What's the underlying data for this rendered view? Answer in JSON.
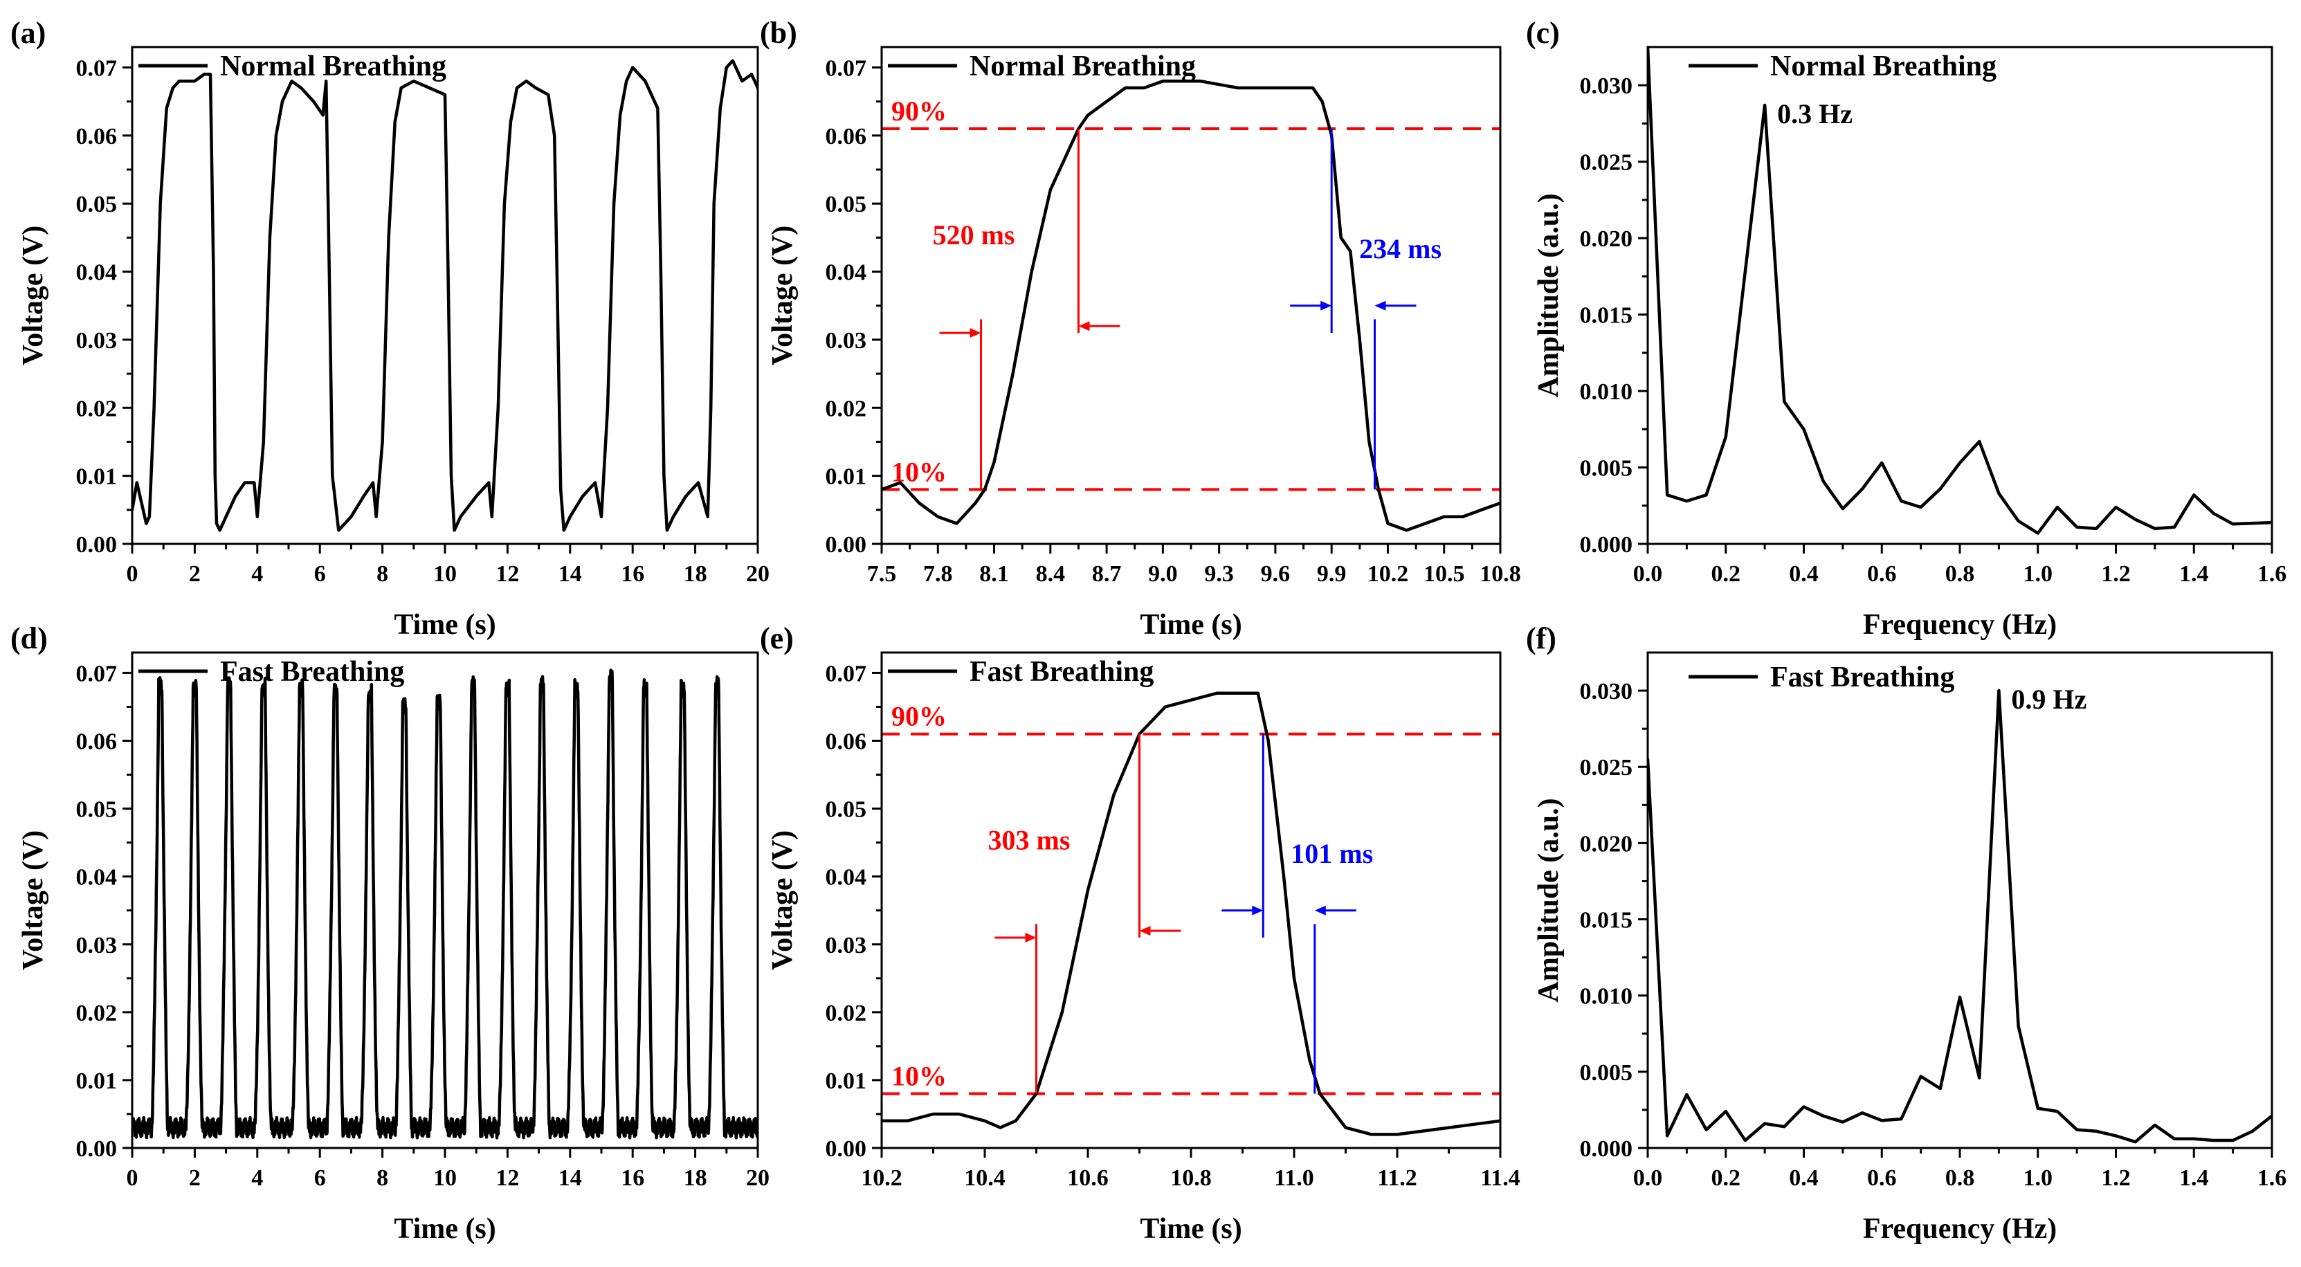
{
  "chart_data": [
    {
      "panel": "(a)",
      "type": "line",
      "legend": "Normal Breathing",
      "xlabel": "Time (s)",
      "ylabel": "Voltage (V)",
      "xlim": [
        0,
        20
      ],
      "ylim": [
        0,
        0.073
      ],
      "xticks": [
        0,
        2,
        4,
        6,
        8,
        10,
        12,
        14,
        16,
        18,
        20
      ],
      "yticks": [
        0.0,
        0.01,
        0.02,
        0.03,
        0.04,
        0.05,
        0.06,
        0.07
      ],
      "xtick_labels": [
        "0",
        "2",
        "4",
        "6",
        "8",
        "10",
        "12",
        "14",
        "16",
        "18",
        "20"
      ],
      "ytick_labels": [
        "0.00",
        "0.01",
        "0.02",
        "0.03",
        "0.04",
        "0.05",
        "0.06",
        "0.07"
      ],
      "series": [
        {
          "name": "Normal Breathing",
          "x": [
            0,
            0.15,
            0.3,
            0.45,
            0.55,
            0.7,
            0.9,
            1.1,
            1.3,
            1.5,
            1.7,
            2.0,
            2.3,
            2.5,
            2.6,
            2.65,
            2.7,
            2.8,
            3.0,
            3.3,
            3.6,
            3.9,
            4.0,
            4.2,
            4.4,
            4.6,
            4.8,
            5.1,
            5.4,
            5.8,
            6.1,
            6.2,
            6.3,
            6.4,
            6.6,
            7.0,
            7.4,
            7.7,
            7.8,
            8.0,
            8.2,
            8.4,
            8.6,
            9.0,
            9.5,
            10.0,
            10.1,
            10.2,
            10.3,
            10.5,
            11.0,
            11.4,
            11.5,
            11.7,
            11.9,
            12.1,
            12.3,
            12.6,
            12.9,
            13.3,
            13.5,
            13.6,
            13.7,
            13.8,
            14.0,
            14.4,
            14.8,
            15.0,
            15.2,
            15.4,
            15.6,
            15.8,
            16.0,
            16.4,
            16.8,
            16.9,
            17.0,
            17.1,
            17.3,
            17.7,
            18.1,
            18.4,
            18.5,
            18.6,
            18.8,
            19.0,
            19.2,
            19.5,
            19.8,
            20.0
          ],
          "y": [
            0.005,
            0.009,
            0.006,
            0.003,
            0.004,
            0.02,
            0.05,
            0.064,
            0.067,
            0.068,
            0.068,
            0.068,
            0.069,
            0.069,
            0.04,
            0.01,
            0.003,
            0.002,
            0.004,
            0.007,
            0.009,
            0.009,
            0.004,
            0.015,
            0.045,
            0.06,
            0.065,
            0.068,
            0.067,
            0.065,
            0.063,
            0.068,
            0.04,
            0.01,
            0.002,
            0.004,
            0.007,
            0.009,
            0.004,
            0.015,
            0.045,
            0.062,
            0.067,
            0.068,
            0.067,
            0.066,
            0.04,
            0.01,
            0.002,
            0.004,
            0.007,
            0.009,
            0.004,
            0.02,
            0.05,
            0.062,
            0.067,
            0.068,
            0.067,
            0.066,
            0.06,
            0.035,
            0.008,
            0.002,
            0.004,
            0.007,
            0.009,
            0.004,
            0.02,
            0.05,
            0.063,
            0.068,
            0.07,
            0.068,
            0.064,
            0.04,
            0.01,
            0.002,
            0.004,
            0.007,
            0.009,
            0.004,
            0.02,
            0.05,
            0.064,
            0.07,
            0.071,
            0.068,
            0.069,
            0.067
          ]
        }
      ]
    },
    {
      "panel": "(b)",
      "type": "line",
      "legend": "Normal Breathing",
      "xlabel": "Time (s)",
      "ylabel": "Voltage (V)",
      "xlim": [
        7.5,
        10.8
      ],
      "ylim": [
        0,
        0.073
      ],
      "xticks": [
        7.5,
        7.8,
        8.1,
        8.4,
        8.7,
        9.0,
        9.3,
        9.6,
        9.9,
        10.2,
        10.5,
        10.8
      ],
      "yticks": [
        0.0,
        0.01,
        0.02,
        0.03,
        0.04,
        0.05,
        0.06,
        0.07
      ],
      "xtick_labels": [
        "7.5",
        "7.8",
        "8.1",
        "8.4",
        "8.7",
        "9.0",
        "9.3",
        "9.6",
        "9.9",
        "10.2",
        "10.5",
        "10.8"
      ],
      "ytick_labels": [
        "0.00",
        "0.01",
        "0.02",
        "0.03",
        "0.04",
        "0.05",
        "0.06",
        "0.07"
      ],
      "series": [
        {
          "name": "Normal Breathing",
          "x": [
            7.5,
            7.6,
            7.7,
            7.8,
            7.9,
            8.0,
            8.05,
            8.1,
            8.2,
            8.3,
            8.4,
            8.5,
            8.55,
            8.6,
            8.7,
            8.8,
            8.9,
            9.0,
            9.2,
            9.4,
            9.6,
            9.8,
            9.85,
            9.9,
            9.95,
            10.0,
            10.05,
            10.1,
            10.15,
            10.2,
            10.3,
            10.4,
            10.5,
            10.6,
            10.7,
            10.8
          ],
          "y": [
            0.008,
            0.009,
            0.006,
            0.004,
            0.003,
            0.006,
            0.008,
            0.012,
            0.025,
            0.04,
            0.052,
            0.058,
            0.061,
            0.063,
            0.065,
            0.067,
            0.067,
            0.068,
            0.068,
            0.067,
            0.067,
            0.067,
            0.065,
            0.06,
            0.045,
            0.043,
            0.03,
            0.015,
            0.008,
            0.003,
            0.002,
            0.003,
            0.004,
            0.004,
            0.005,
            0.006
          ]
        }
      ],
      "hlines": [
        {
          "label": "90%",
          "y": 0.061
        },
        {
          "label": "10%",
          "y": 0.008
        }
      ],
      "markers": [
        {
          "label": "520 ms",
          "color": "#ff0000",
          "from": 8.03,
          "to": 8.55
        },
        {
          "label": "234 ms",
          "color": "#0000ff",
          "from": 9.9,
          "to": 10.13
        }
      ]
    },
    {
      "panel": "(c)",
      "type": "line",
      "legend": "Normal Breathing",
      "xlabel": "Frequency (Hz)",
      "ylabel": "Amplitude (a.u.)",
      "xlim": [
        0,
        1.6
      ],
      "ylim": [
        0,
        0.0325
      ],
      "xticks": [
        0,
        0.2,
        0.4,
        0.6,
        0.8,
        1.0,
        1.2,
        1.4,
        1.6
      ],
      "yticks": [
        0.0,
        0.005,
        0.01,
        0.015,
        0.02,
        0.025,
        0.03
      ],
      "xtick_labels": [
        "0.0",
        "0.2",
        "0.4",
        "0.6",
        "0.8",
        "1.0",
        "1.2",
        "1.4",
        "1.6"
      ],
      "ytick_labels": [
        "0.000",
        "0.005",
        "0.010",
        "0.015",
        "0.020",
        "0.025",
        "0.030"
      ],
      "series": [
        {
          "name": "Normal Breathing",
          "x": [
            0.0,
            0.05,
            0.1,
            0.15,
            0.2,
            0.3,
            0.35,
            0.4,
            0.45,
            0.5,
            0.55,
            0.6,
            0.65,
            0.7,
            0.75,
            0.8,
            0.85,
            0.9,
            0.95,
            1.0,
            1.05,
            1.1,
            1.15,
            1.2,
            1.25,
            1.3,
            1.35,
            1.4,
            1.45,
            1.5,
            1.6
          ],
          "y": [
            0.0325,
            0.0032,
            0.0028,
            0.0032,
            0.007,
            0.0287,
            0.0093,
            0.0075,
            0.0041,
            0.0023,
            0.0036,
            0.0053,
            0.0028,
            0.0024,
            0.0036,
            0.0053,
            0.0067,
            0.0033,
            0.0015,
            0.0007,
            0.0024,
            0.0011,
            0.001,
            0.0024,
            0.0016,
            0.001,
            0.0011,
            0.0032,
            0.002,
            0.0013,
            0.0014
          ]
        }
      ],
      "annotations": [
        {
          "text": "0.3 Hz",
          "x": 0.3,
          "y": 0.0287
        }
      ]
    },
    {
      "panel": "(d)",
      "type": "line",
      "legend": "Fast Breathing",
      "xlabel": "Time (s)",
      "ylabel": "Voltage (V)",
      "xlim": [
        0,
        20
      ],
      "ylim": [
        0,
        0.073
      ],
      "xticks": [
        0,
        2,
        4,
        6,
        8,
        10,
        12,
        14,
        16,
        18,
        20
      ],
      "yticks": [
        0.0,
        0.01,
        0.02,
        0.03,
        0.04,
        0.05,
        0.06,
        0.07
      ],
      "xtick_labels": [
        "0",
        "2",
        "4",
        "6",
        "8",
        "10",
        "12",
        "14",
        "16",
        "18",
        "20"
      ],
      "ytick_labels": [
        "0.00",
        "0.01",
        "0.02",
        "0.03",
        "0.04",
        "0.05",
        "0.06",
        "0.07"
      ],
      "series": [
        {
          "name": "Fast Breathing",
          "peak_times": [
            0.9,
            2.0,
            3.1,
            4.2,
            5.4,
            6.5,
            7.6,
            8.7,
            9.8,
            10.9,
            12.0,
            13.1,
            14.2,
            15.3,
            16.4,
            17.6,
            18.7
          ],
          "peak_values": [
            0.068,
            0.068,
            0.068,
            0.068,
            0.068,
            0.067,
            0.067,
            0.065,
            0.066,
            0.068,
            0.068,
            0.068,
            0.068,
            0.069,
            0.068,
            0.068,
            0.068
          ],
          "baseline": 0.003
        }
      ]
    },
    {
      "panel": "(e)",
      "type": "line",
      "legend": "Fast Breathing",
      "xlabel": "Time (s)",
      "ylabel": "Voltage (V)",
      "xlim": [
        10.2,
        11.4
      ],
      "ylim": [
        0,
        0.073
      ],
      "xticks": [
        10.2,
        10.4,
        10.6,
        10.8,
        11.0,
        11.2,
        11.4
      ],
      "yticks": [
        0.0,
        0.01,
        0.02,
        0.03,
        0.04,
        0.05,
        0.06,
        0.07
      ],
      "xtick_labels": [
        "10.2",
        "10.4",
        "10.6",
        "10.8",
        "11.0",
        "11.2",
        "11.4"
      ],
      "ytick_labels": [
        "0.00",
        "0.01",
        "0.02",
        "0.03",
        "0.04",
        "0.05",
        "0.06",
        "0.07"
      ],
      "series": [
        {
          "name": "Fast Breathing",
          "x": [
            10.2,
            10.25,
            10.3,
            10.35,
            10.4,
            10.43,
            10.46,
            10.5,
            10.55,
            10.6,
            10.65,
            10.7,
            10.75,
            10.8,
            10.85,
            10.9,
            10.93,
            10.95,
            10.98,
            11.0,
            11.03,
            11.05,
            11.08,
            11.1,
            11.15,
            11.2,
            11.25,
            11.3,
            11.35,
            11.4
          ],
          "y": [
            0.004,
            0.004,
            0.005,
            0.005,
            0.004,
            0.003,
            0.004,
            0.008,
            0.02,
            0.038,
            0.052,
            0.061,
            0.065,
            0.066,
            0.067,
            0.067,
            0.067,
            0.06,
            0.04,
            0.025,
            0.013,
            0.008,
            0.005,
            0.003,
            0.002,
            0.002,
            0.0025,
            0.003,
            0.0035,
            0.004
          ]
        }
      ],
      "hlines": [
        {
          "label": "90%",
          "y": 0.061
        },
        {
          "label": "10%",
          "y": 0.008
        }
      ],
      "markers": [
        {
          "label": "303 ms",
          "color": "#ff0000",
          "from": 10.5,
          "to": 10.7
        },
        {
          "label": "101 ms",
          "color": "#0000ff",
          "from": 10.94,
          "to": 11.04
        }
      ]
    },
    {
      "panel": "(f)",
      "type": "line",
      "legend": "Fast Breathing",
      "xlabel": "Frequency (Hz)",
      "ylabel": "Amplitude (a.u.)",
      "xlim": [
        0,
        1.6
      ],
      "ylim": [
        0,
        0.0325
      ],
      "xticks": [
        0,
        0.2,
        0.4,
        0.6,
        0.8,
        1.0,
        1.2,
        1.4,
        1.6
      ],
      "yticks": [
        0.0,
        0.005,
        0.01,
        0.015,
        0.02,
        0.025,
        0.03
      ],
      "xtick_labels": [
        "0.0",
        "0.2",
        "0.4",
        "0.6",
        "0.8",
        "1.0",
        "1.2",
        "1.4",
        "1.6"
      ],
      "ytick_labels": [
        "0.000",
        "0.005",
        "0.010",
        "0.015",
        "0.020",
        "0.025",
        "0.030"
      ],
      "series": [
        {
          "name": "Fast Breathing",
          "x": [
            0.0,
            0.05,
            0.1,
            0.15,
            0.2,
            0.25,
            0.3,
            0.35,
            0.4,
            0.45,
            0.5,
            0.55,
            0.6,
            0.65,
            0.7,
            0.75,
            0.8,
            0.85,
            0.9,
            0.95,
            1.0,
            1.05,
            1.1,
            1.15,
            1.2,
            1.25,
            1.3,
            1.35,
            1.4,
            1.45,
            1.5,
            1.55,
            1.6
          ],
          "y": [
            0.0255,
            0.0008,
            0.0035,
            0.0012,
            0.0024,
            0.0005,
            0.0016,
            0.0014,
            0.0027,
            0.0021,
            0.0017,
            0.0023,
            0.0018,
            0.0019,
            0.0047,
            0.0039,
            0.0099,
            0.0046,
            0.03,
            0.008,
            0.0026,
            0.0024,
            0.0012,
            0.0011,
            0.0008,
            0.0004,
            0.0015,
            0.0006,
            0.0006,
            0.0005,
            0.0005,
            0.0011,
            0.0021
          ]
        }
      ],
      "annotations": [
        {
          "text": "0.9 Hz",
          "x": 0.9,
          "y": 0.03
        }
      ]
    }
  ],
  "colors": {
    "trace": "#000000",
    "threshold": "#ff0000",
    "rise": "#ff0000",
    "fall": "#0000ff"
  }
}
